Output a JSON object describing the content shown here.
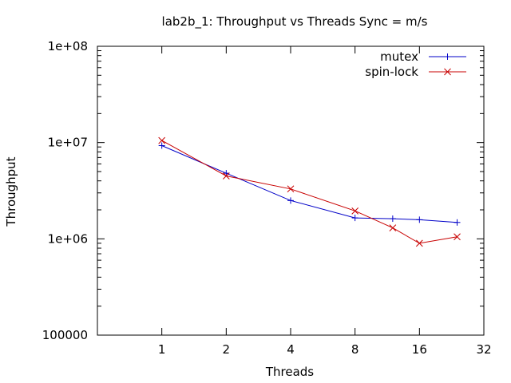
{
  "chart_data": {
    "type": "line",
    "title": "lab2b_1: Throughput vs Threads Sync = m/s",
    "xlabel": "Threads",
    "ylabel": "Throughput",
    "x_scale": "log2",
    "y_scale": "log10",
    "xlim": [
      0.5,
      32
    ],
    "ylim": [
      100000,
      100000000
    ],
    "x_ticks": [
      1,
      2,
      4,
      8,
      16,
      32
    ],
    "x_tick_labels": [
      "1",
      "2",
      "4",
      "8",
      "16",
      "32"
    ],
    "y_ticks": [
      100000,
      1000000,
      10000000,
      100000000
    ],
    "y_tick_labels": [
      "100000",
      "1e+06",
      "1e+07",
      "1e+08"
    ],
    "legend_position": "top-right",
    "grid": false,
    "series": [
      {
        "name": "mutex",
        "color": "#0000c8",
        "marker": "plus",
        "x": [
          1,
          2,
          4,
          8,
          12,
          16,
          24
        ],
        "y": [
          9300000,
          4800000,
          2500000,
          1650000,
          1620000,
          1580000,
          1480000
        ]
      },
      {
        "name": "spin-lock",
        "color": "#c80000",
        "marker": "cross",
        "x": [
          1,
          2,
          4,
          8,
          12,
          16,
          24
        ],
        "y": [
          10500000,
          4500000,
          3300000,
          1950000,
          1300000,
          900000,
          1050000
        ]
      }
    ]
  }
}
